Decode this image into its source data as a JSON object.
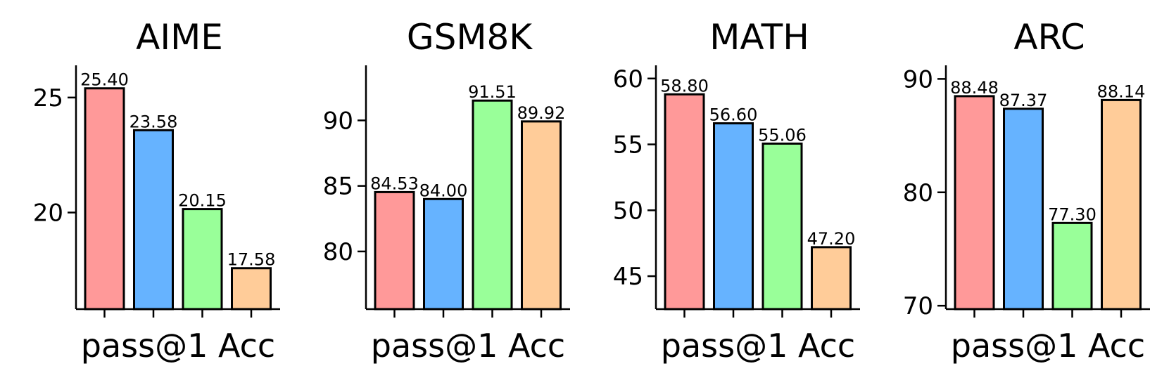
{
  "chart_data": [
    {
      "type": "bar",
      "title": "AIME",
      "xlabel": "pass@1 Acc",
      "ylabel": "",
      "ylim": [
        15.8,
        26.4
      ],
      "yticks": [
        20,
        25
      ],
      "values": [
        25.4,
        23.58,
        20.15,
        17.58
      ],
      "labels": [
        "25.40",
        "23.58",
        "20.15",
        "17.58"
      ],
      "colors": [
        "#ff9999",
        "#66b3ff",
        "#99ff99",
        "#ffcc99"
      ]
    },
    {
      "type": "bar",
      "title": "GSM8K",
      "xlabel": "pass@1 Acc",
      "ylabel": "",
      "ylim": [
        75.6,
        94.2
      ],
      "yticks": [
        80,
        85,
        90
      ],
      "values": [
        84.53,
        84.0,
        91.51,
        89.92
      ],
      "labels": [
        "84.53",
        "84.00",
        "91.51",
        "89.92"
      ],
      "colors": [
        "#ff9999",
        "#66b3ff",
        "#99ff99",
        "#ffcc99"
      ]
    },
    {
      "type": "bar",
      "title": "MATH",
      "xlabel": "pass@1 Acc",
      "ylabel": "",
      "ylim": [
        42.5,
        61.0
      ],
      "yticks": [
        45,
        50,
        55,
        60
      ],
      "values": [
        58.8,
        56.6,
        55.06,
        47.2
      ],
      "labels": [
        "58.80",
        "56.60",
        "55.06",
        "47.20"
      ],
      "colors": [
        "#ff9999",
        "#66b3ff",
        "#99ff99",
        "#ffcc99"
      ]
    },
    {
      "type": "bar",
      "title": "ARC",
      "xlabel": "pass@1 Acc",
      "ylabel": "",
      "ylim": [
        69.7,
        91.2
      ],
      "yticks": [
        70,
        80,
        90
      ],
      "values": [
        88.48,
        87.37,
        77.3,
        88.14
      ],
      "labels": [
        "88.48",
        "87.37",
        "77.30",
        "88.14"
      ],
      "colors": [
        "#ff9999",
        "#66b3ff",
        "#99ff99",
        "#ffcc99"
      ]
    }
  ]
}
